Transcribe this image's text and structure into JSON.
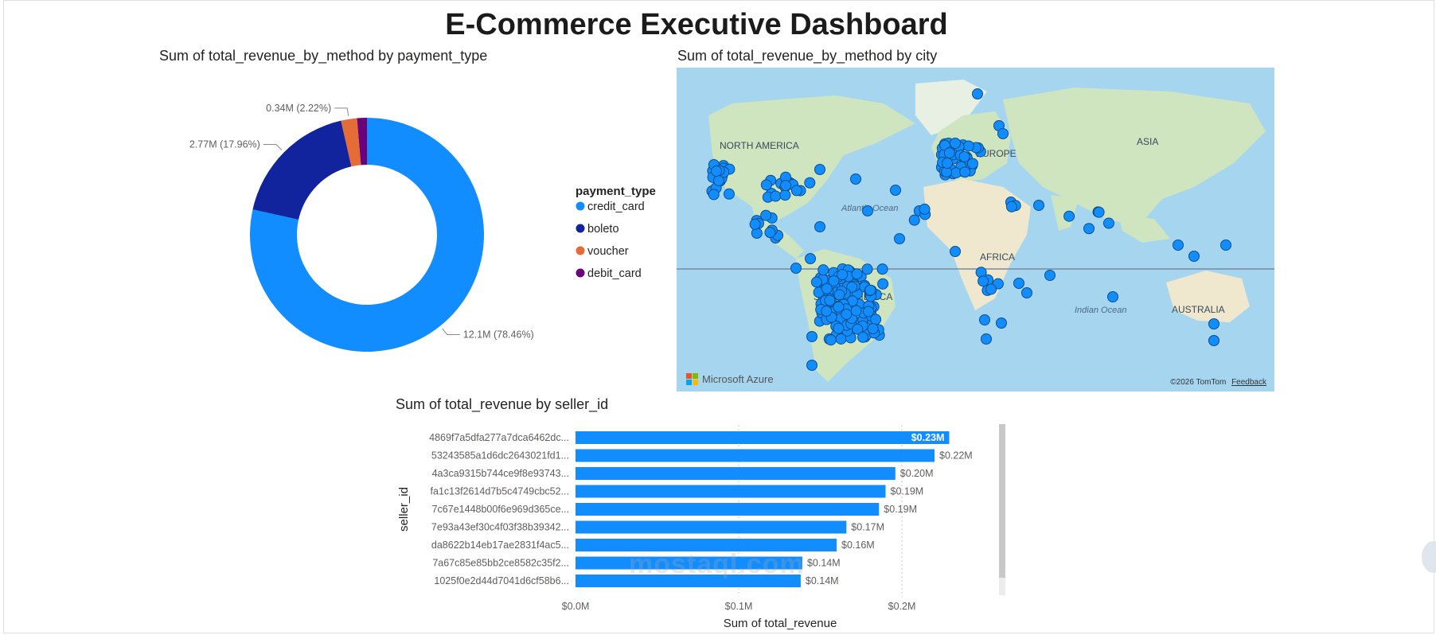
{
  "dashboard": {
    "title": "E-Commerce Executive Dashboard"
  },
  "donut": {
    "title": "Sum of total_revenue_by_method by payment_type",
    "legend_title": "payment_type",
    "chart_data": {
      "type": "pie",
      "title": "Sum of total_revenue_by_method by payment_type",
      "legend_position": "right",
      "slices": [
        {
          "name": "credit_card",
          "value": 12.1,
          "label": "12.1M (78.46%)",
          "percent": 78.46,
          "color": "#118dff"
        },
        {
          "name": "boleto",
          "value": 2.77,
          "label": "2.77M (17.96%)",
          "percent": 17.96,
          "color": "#12239e"
        },
        {
          "name": "voucher",
          "value": 0.34,
          "label": "0.34M (2.22%)",
          "percent": 2.22,
          "color": "#e66c37"
        },
        {
          "name": "debit_card",
          "value": 0.21,
          "label": "",
          "percent": 1.36,
          "color": "#6b007b"
        }
      ]
    }
  },
  "map": {
    "title": "Sum of total_revenue_by_method by city",
    "labels": {
      "north_america": "NORTH AMERICA",
      "europe": "EUROPE",
      "asia": "ASIA",
      "atlantic": "Atlantic Ocean",
      "africa": "AFRICA",
      "south_america": "SOUTH AMERICA",
      "indian": "Indian Ocean",
      "australia": "AUSTRALIA"
    },
    "brand": "Microsoft Azure",
    "copyright": "©2026 TomTom",
    "feedback": "Feedback",
    "colors": {
      "water": "#a6d5ef",
      "land": "#cfe5c0",
      "bubble": "#118dff"
    }
  },
  "bar": {
    "title": "Sum of total_revenue by seller_id",
    "chart_data": {
      "type": "bar",
      "orientation": "horizontal",
      "title": "Sum of total_revenue by seller_id",
      "xlabel": "Sum of total_revenue",
      "ylabel": "seller_id",
      "xlim": [
        0,
        0.25
      ],
      "x_ticks": [
        {
          "value": 0,
          "label": "$0.0M"
        },
        {
          "value": 0.1,
          "label": "$0.1M"
        },
        {
          "value": 0.2,
          "label": "$0.2M"
        }
      ],
      "categories": [
        "4869f7a5dfa277a7dca6462dc...",
        "53243585a1d6dc2643021fd1...",
        "4a3ca9315b744ce9f8e93743...",
        "fa1c13f2614d7b5c4749cbc52...",
        "7c67e1448b00f6e969d365ce...",
        "7e93a43ef30c4f03f38b39342...",
        "da8622b14eb17ae2831f4ac5...",
        "7a67c85e85bb2ce8582c35f2...",
        "1025f0e2d44d7041d6cf58b6..."
      ],
      "values": [
        0.229,
        0.22,
        0.196,
        0.19,
        0.186,
        0.166,
        0.16,
        0.139,
        0.138
      ],
      "value_labels": [
        "$0.23M",
        "$0.22M",
        "$0.20M",
        "$0.19M",
        "$0.19M",
        "$0.17M",
        "$0.16M",
        "$0.14M",
        "$0.14M"
      ],
      "color": "#118dff",
      "grid": true
    }
  },
  "watermark": "mostaql.com"
}
